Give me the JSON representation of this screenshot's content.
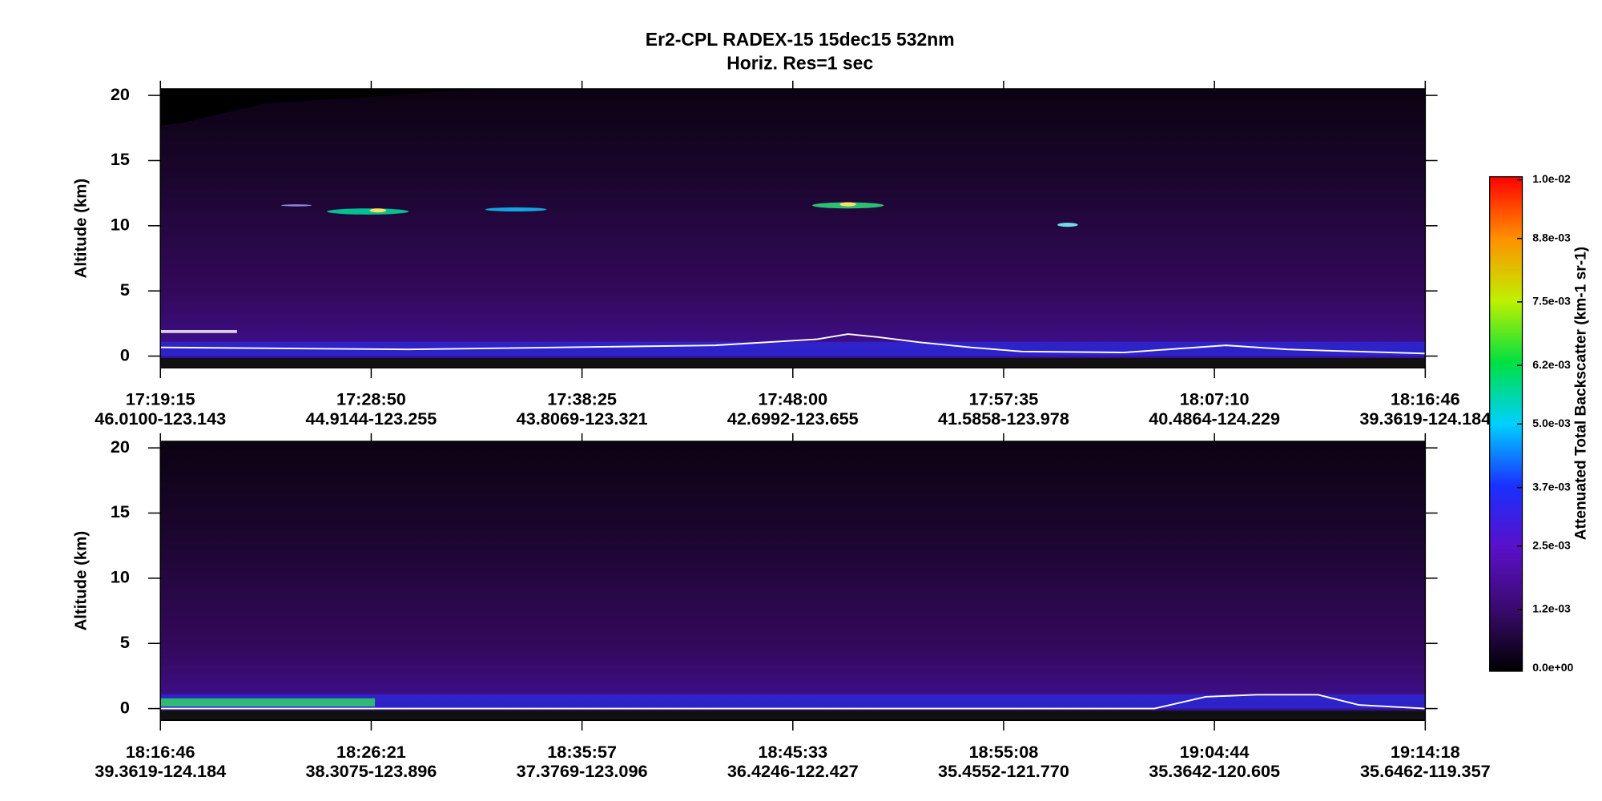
{
  "chart_data": [
    {
      "type": "heatmap",
      "title": [
        "Er2-CPL  RADEX-15  15dec15  532nm",
        "Horiz. Res=1 sec"
      ],
      "ylabel": "Altitude (km)",
      "ylim": [
        -0.9,
        20.5
      ],
      "yticks": [
        0,
        5,
        10,
        15,
        20
      ],
      "xtick_labels": [
        [
          "17:19:15",
          "46.0100-123.143"
        ],
        [
          "17:28:50",
          "44.9144-123.255"
        ],
        [
          "17:38:25",
          "43.8069-123.321"
        ],
        [
          "17:48:00",
          "42.6992-123.655"
        ],
        [
          "17:57:35",
          "41.5858-123.978"
        ],
        [
          "18:07:10",
          "40.4864-124.229"
        ],
        [
          "18:16:46",
          "39.3619-124.184"
        ]
      ],
      "colorbar": {
        "label": "Attenuated Total Backscatter (km-1 sr-1)",
        "lim": [
          0,
          0.01
        ],
        "colors": [
          "#000000",
          "#3a0a6e",
          "#5a10c8",
          "#1a30ff",
          "#00d0ff",
          "#00e040",
          "#c0f000",
          "#ff9000",
          "#ff0000"
        ],
        "ticks": [
          {
            "value": 0,
            "label": "0.0e+00"
          },
          {
            "value": 0.0012,
            "label": "1.2e-03"
          },
          {
            "value": 0.0025,
            "label": "2.5e-03"
          },
          {
            "value": 0.0037,
            "label": "3.7e-03"
          },
          {
            "value": 0.005,
            "label": "5.0e-03"
          },
          {
            "value": 0.0062,
            "label": "6.2e-03"
          },
          {
            "value": 0.0075,
            "label": "7.5e-03"
          },
          {
            "value": 0.0088,
            "label": "8.8e-03"
          },
          {
            "value": 0.01,
            "label": "1.0e-02"
          }
        ]
      }
    },
    {
      "type": "heatmap",
      "ylabel": "Altitude (km)",
      "ylim": [
        -0.9,
        20.5
      ],
      "yticks": [
        0,
        5,
        10,
        15,
        20
      ],
      "xtick_labels": [
        [
          "18:16:46",
          "39.3619-124.184"
        ],
        [
          "18:26:21",
          "38.3075-123.896"
        ],
        [
          "18:35:57",
          "37.3769-123.096"
        ],
        [
          "18:45:33",
          "36.4246-122.427"
        ],
        [
          "18:55:08",
          "35.4552-121.770"
        ],
        [
          "19:04:44",
          "35.3642-120.605"
        ],
        [
          "19:14:18",
          "35.6462-119.357"
        ]
      ]
    }
  ]
}
